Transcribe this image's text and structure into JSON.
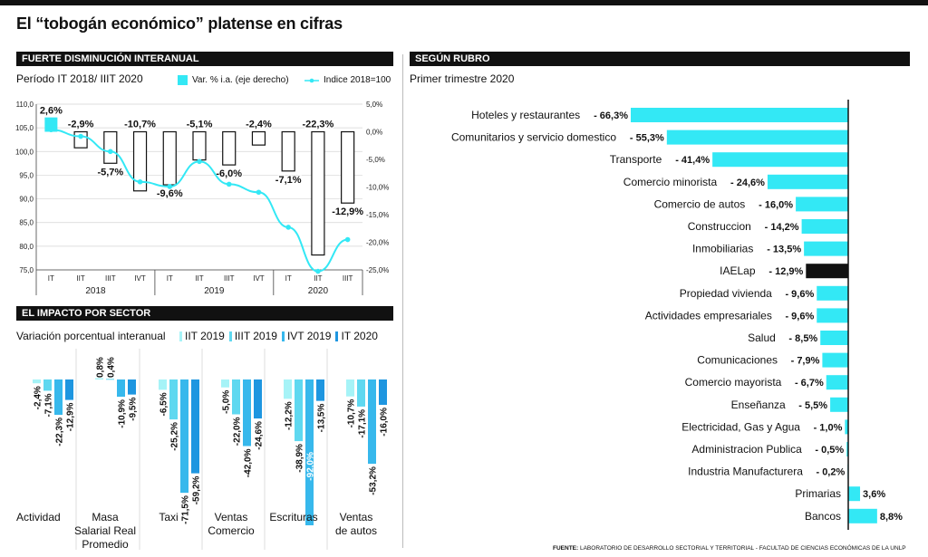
{
  "title": "El “tobogán económico” platense en cifras",
  "source_label": "FUENTE:",
  "source_text": "LABORATORIO DE DESARROLLO SECTORIAL Y TERRITORIAL - FACULTAD DE CIENCIAS ECONÓMICAS DE LA UNLP",
  "colors": {
    "cyan": "#33e8f5",
    "blue1": "#a6f3f7",
    "blue2": "#5fd8f0",
    "blue3": "#37b8ec",
    "blue4": "#1e96e0",
    "black": "#111111"
  },
  "panel1": {
    "header": "FUERTE DISMINUCIÓN INTERANUAL",
    "subtitle": "Período IT 2018/ IIIT 2020",
    "legend_bar": "Var. % i.a. (eje derecho)",
    "legend_line": "Indice 2018=100"
  },
  "panel2": {
    "header": "EL IMPACTO POR SECTOR",
    "subtitle": "Variación porcentual interanual",
    "legend": [
      "IIT 2019",
      "IIIT 2019",
      "IVT 2019",
      "IT 2020"
    ]
  },
  "panel3": {
    "header": "SEGÚN RUBRO",
    "subtitle": "Primer trimestre 2020"
  },
  "chart_data": [
    {
      "type": "bar",
      "title": "FUERTE DISMINUCIÓN INTERANUAL",
      "categories": [
        "IT",
        "IIT",
        "IIIT",
        "IVT",
        "IT",
        "IIT",
        "IIIT",
        "IVT",
        "IT",
        "IIT",
        "IIIT"
      ],
      "years": [
        {
          "label": "2018",
          "span": [
            0,
            3
          ]
        },
        {
          "label": "2019",
          "span": [
            4,
            7
          ]
        },
        {
          "label": "2020",
          "span": [
            8,
            10
          ]
        }
      ],
      "series": [
        {
          "name": "Var. % i.a. (eje derecho)",
          "type": "bar",
          "axis": "right",
          "values": [
            2.6,
            -2.9,
            -5.7,
            -10.7,
            -9.6,
            -5.1,
            -6.0,
            -2.4,
            -7.1,
            -22.3,
            -12.9
          ],
          "labels": [
            "2,6%",
            "-2,9%",
            "-5,7%",
            "-10,7%",
            "-9,6%",
            "-5,1%",
            "-6,0%",
            "-2,4%",
            "-7,1%",
            "-22,3%",
            "-12,9%"
          ]
        },
        {
          "name": "Indice 2018=100",
          "type": "line",
          "axis": "left",
          "values": [
            104.6,
            103.2,
            100.0,
            93.6,
            92.6,
            97.9,
            93.1,
            91.4,
            84.0,
            74.7,
            81.4
          ]
        }
      ],
      "left_axis": {
        "ticks": [
          "110,0",
          "105,0",
          "100,0",
          "95,0",
          "90,0",
          "85,0",
          "80,0",
          "75,0"
        ],
        "ylim": [
          75,
          110
        ]
      },
      "right_axis": {
        "ticks": [
          "5,0%",
          "0,0%",
          "-5,0%",
          "-10,0%",
          "-15,0%",
          "-20,0%",
          "-25,0%"
        ],
        "ylim": [
          -25,
          5
        ]
      }
    },
    {
      "type": "bar",
      "title": "EL IMPACTO POR SECTOR",
      "groups": [
        {
          "label": [
            "Actividad"
          ],
          "values": [
            -2.4,
            -7.1,
            -22.3,
            -12.9
          ],
          "labels": [
            "-2,4%",
            "-7,1%",
            "-22,3%",
            "-12,9%"
          ]
        },
        {
          "label": [
            "Masa",
            "Salarial Real",
            "Promedio"
          ],
          "values": [
            0.8,
            0.4,
            -10.9,
            -9.5
          ],
          "labels": [
            "0,8%",
            "0,4%",
            "-10,9%",
            "-9,5%"
          ]
        },
        {
          "label": [
            "Taxi"
          ],
          "values": [
            -6.5,
            -25.2,
            -71.5,
            -59.2
          ],
          "labels": [
            "-6,5%",
            "-25,2%",
            "-71,5%",
            "-59,2%"
          ]
        },
        {
          "label": [
            "Ventas",
            "Comercio"
          ],
          "values": [
            -5.0,
            -22.0,
            -42.0,
            -24.6
          ],
          "labels": [
            "-5,0%",
            "-22,0%",
            "-42,0%",
            "-24,6%"
          ]
        },
        {
          "label": [
            "Escrituras"
          ],
          "values": [
            -12.2,
            -38.9,
            -92.0,
            -13.5
          ],
          "labels": [
            "-12,2%",
            "-38,9%",
            "-92,0%",
            "-13,5%"
          ]
        },
        {
          "label": [
            "Ventas",
            "de autos"
          ],
          "values": [
            -10.7,
            -17.1,
            -53.2,
            -16.0
          ],
          "labels": [
            "-10,7%",
            "-17,1%",
            "-53,2%",
            "-16,0%"
          ]
        }
      ],
      "series_names": [
        "IIT 2019",
        "IIIT 2019",
        "IVT 2019",
        "IT 2020"
      ]
    },
    {
      "type": "bar",
      "orientation": "horizontal",
      "title": "SEGÚN RUBRO",
      "categories": [
        "Hoteles y restaurantes",
        "Comunitarios y servicio domestico",
        "Transporte",
        "Comercio minorista",
        "Comercio de autos",
        "Construccion",
        "Inmobiliarias",
        "IAELap",
        "Propiedad vivienda",
        "Actividades empresariales",
        "Salud",
        "Comunicaciones",
        "Comercio mayorista",
        "Enseñanza",
        "Electricidad, Gas y Agua",
        "Administracion Publica",
        "Industria Manufacturera",
        "Primarias",
        "Bancos"
      ],
      "values": [
        -66.3,
        -55.3,
        -41.4,
        -24.6,
        -16.0,
        -14.2,
        -13.5,
        -12.9,
        -9.6,
        -9.6,
        -8.5,
        -7.9,
        -6.7,
        -5.5,
        -1.0,
        -0.5,
        -0.2,
        3.6,
        8.8
      ],
      "labels": [
        "- 66,3%",
        "- 55,3%",
        "- 41,4%",
        "- 24,6%",
        "- 16,0%",
        "- 14,2%",
        "- 13,5%",
        "- 12,9%",
        "- 9,6%",
        "- 9,6%",
        "- 8,5%",
        "- 7,9%",
        "- 6,7%",
        "- 5,5%",
        "- 1,0%",
        "- 0,5%",
        "- 0,2%",
        "3,6%",
        "8,8%"
      ],
      "highlight": "IAELap"
    }
  ]
}
